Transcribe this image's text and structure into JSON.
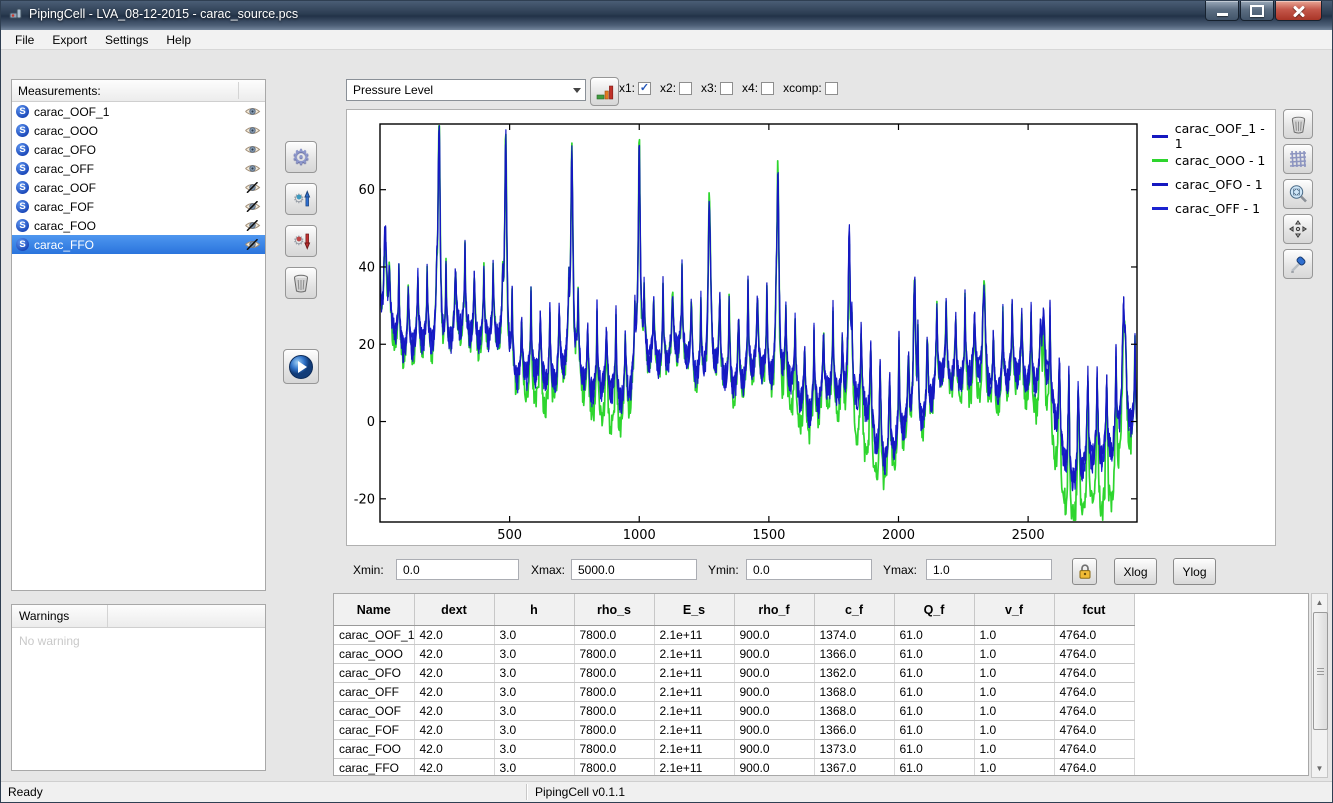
{
  "window": {
    "title": "PipingCell - LVA_08-12-2015 - carac_source.pcs"
  },
  "menu": {
    "items": [
      "File",
      "Export",
      "Settings",
      "Help"
    ]
  },
  "measurements": {
    "header": "Measurements:",
    "items": [
      {
        "label": "carac_OOF_1",
        "visible": true,
        "selected": false
      },
      {
        "label": "carac_OOO",
        "visible": true,
        "selected": false
      },
      {
        "label": "carac_OFO",
        "visible": true,
        "selected": false
      },
      {
        "label": "carac_OFF",
        "visible": true,
        "selected": false
      },
      {
        "label": "carac_OOF",
        "visible": false,
        "selected": false
      },
      {
        "label": "carac_FOF",
        "visible": false,
        "selected": false
      },
      {
        "label": "carac_FOO",
        "visible": false,
        "selected": false
      },
      {
        "label": "carac_FFO",
        "visible": false,
        "selected": true
      }
    ]
  },
  "warnings": {
    "title": "Warnings",
    "empty_text": "No warning"
  },
  "toolbar": {
    "series_select": {
      "value": "Pressure Level"
    },
    "check_glyph": "✓",
    "checkboxes": [
      {
        "label": "x1:",
        "checked": true
      },
      {
        "label": "x2:",
        "checked": false
      },
      {
        "label": "x3:",
        "checked": false
      },
      {
        "label": "x4:",
        "checked": false
      },
      {
        "label": "xcomp:",
        "checked": false
      }
    ]
  },
  "range_controls": {
    "fields": [
      {
        "label": "Xmin:",
        "value": "0.0"
      },
      {
        "label": "Xmax:",
        "value": "5000.0"
      },
      {
        "label": "Ymin:",
        "value": "0.0"
      },
      {
        "label": "Ymax:",
        "value": "1.0"
      }
    ],
    "xlog_label": "Xlog",
    "ylog_label": "Ylog"
  },
  "table": {
    "columns": [
      "Name",
      "dext",
      "h",
      "rho_s",
      "E_s",
      "rho_f",
      "c_f",
      "Q_f",
      "v_f",
      "fcut"
    ],
    "rows": [
      [
        "carac_OOF_1",
        "42.0",
        "3.0",
        "7800.0",
        "2.1e+11",
        "900.0",
        "1374.0",
        "61.0",
        "1.0",
        "4764.0"
      ],
      [
        "carac_OOO",
        "42.0",
        "3.0",
        "7800.0",
        "2.1e+11",
        "900.0",
        "1366.0",
        "61.0",
        "1.0",
        "4764.0"
      ],
      [
        "carac_OFO",
        "42.0",
        "3.0",
        "7800.0",
        "2.1e+11",
        "900.0",
        "1362.0",
        "61.0",
        "1.0",
        "4764.0"
      ],
      [
        "carac_OFF",
        "42.0",
        "3.0",
        "7800.0",
        "2.1e+11",
        "900.0",
        "1368.0",
        "61.0",
        "1.0",
        "4764.0"
      ],
      [
        "carac_OOF",
        "42.0",
        "3.0",
        "7800.0",
        "2.1e+11",
        "900.0",
        "1368.0",
        "61.0",
        "1.0",
        "4764.0"
      ],
      [
        "carac_FOF",
        "42.0",
        "3.0",
        "7800.0",
        "2.1e+11",
        "900.0",
        "1366.0",
        "61.0",
        "1.0",
        "4764.0"
      ],
      [
        "carac_FOO",
        "42.0",
        "3.0",
        "7800.0",
        "2.1e+11",
        "900.0",
        "1373.0",
        "61.0",
        "1.0",
        "4764.0"
      ],
      [
        "carac_FFO",
        "42.0",
        "3.0",
        "7800.0",
        "2.1e+11",
        "900.0",
        "1367.0",
        "61.0",
        "1.0",
        "4764.0"
      ]
    ]
  },
  "statusbar": {
    "left": "Ready",
    "right": "PipingCell v0.1.1"
  },
  "chart_data": {
    "type": "line",
    "title": "",
    "xlabel": "",
    "ylabel": "",
    "xlim": [
      0,
      2920
    ],
    "ylim": [
      -26,
      77
    ],
    "xticks": [
      500,
      1000,
      1500,
      2000,
      2500
    ],
    "yticks": [
      -20,
      0,
      20,
      40,
      60
    ],
    "grid": false,
    "legend_position": "right-outside",
    "legend": [
      "carac_OOF_1 - 1",
      "carac_OOO - 1",
      "carac_OFO - 1",
      "carac_OFF - 1"
    ],
    "series": [
      {
        "name": "carac_OOF_1 - 1",
        "color": "#1518c0",
        "kind": "blue",
        "seed": 11
      },
      {
        "name": "carac_OOO - 1",
        "color": "#2ed52e",
        "kind": "green",
        "seed": 22,
        "peak_boost": 3,
        "extra_dip": 1.6
      },
      {
        "name": "carac_OFO - 1",
        "color": "#1518c0",
        "kind": "blue",
        "seed": 33
      },
      {
        "name": "carac_OFF - 1",
        "color": "#1b22d0",
        "kind": "blue",
        "seed": 44
      }
    ],
    "draw_order": [
      1,
      2,
      3,
      0
    ],
    "synthesis": {
      "note": "dense overlapping frequency-response curves; blue traces nearly coincide, green dips lower in valleys",
      "n": 1480,
      "x_max": 2920,
      "comb_period": 36.4,
      "base": {
        "start": 23,
        "slope": -14,
        "wave1_amp": 5,
        "wave1_period": 1050,
        "wave2_amp": 3.2,
        "wave2_period": 360,
        "wave3_amp": 2.2,
        "wave3_period": 142
      },
      "comb": {
        "spike_gain": 1.7,
        "spike_floor": 0.085,
        "spike_cap": 17,
        "dip_amp": 7
      },
      "resonances": [
        [
          20,
          50,
          6
        ],
        [
          228,
          78,
          5
        ],
        [
          485,
          73,
          5
        ],
        [
          740,
          69,
          5
        ],
        [
          1000,
          71,
          5
        ],
        [
          1270,
          58,
          5
        ],
        [
          1535,
          67,
          5
        ],
        [
          1810,
          49,
          5
        ],
        [
          2062,
          45,
          5
        ],
        [
          2330,
          34,
          6
        ],
        [
          2560,
          31,
          6
        ],
        [
          2868,
          38,
          6
        ]
      ],
      "base_valleys": [
        [
          1400,
          6,
          110
        ],
        [
          1950,
          10,
          90
        ],
        [
          2100,
          6,
          70
        ],
        [
          2680,
          15,
          90
        ],
        [
          2850,
          8,
          60
        ]
      ],
      "green_valleys": [
        [
          620,
          6,
          60
        ],
        [
          880,
          8,
          70
        ],
        [
          1600,
          6,
          80
        ],
        [
          1870,
          10,
          80
        ],
        [
          2300,
          5,
          60
        ],
        [
          2620,
          9,
          120
        ],
        [
          2800,
          11,
          80
        ]
      ],
      "noise_amp": 2.6
    }
  }
}
